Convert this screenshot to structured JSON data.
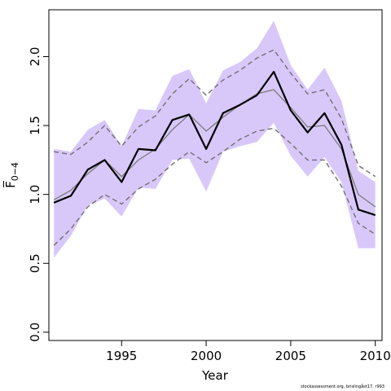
{
  "chart_data": {
    "type": "line",
    "xlabel": "Year",
    "ylabel": "F̅",
    "ylabel_subscript": "0−4",
    "xlim": [
      1990.7,
      2010.4
    ],
    "ylim": [
      -0.06,
      2.34
    ],
    "xticks": [
      1995,
      2000,
      2005,
      2010
    ],
    "yticks": [
      0.0,
      0.5,
      1.0,
      1.5,
      2.0
    ],
    "ytick_labels": [
      "0.0",
      "0.5",
      "1.0",
      "1.5",
      "2.0"
    ],
    "grid": false,
    "x": [
      1991,
      1992,
      1993,
      1994,
      1995,
      1996,
      1997,
      1998,
      1999,
      2000,
      2001,
      2002,
      2003,
      2004,
      2005,
      2006,
      2007,
      2008,
      2009,
      2010
    ],
    "band": {
      "color": "#d8c8fa",
      "upper": [
        1.33,
        1.31,
        1.47,
        1.54,
        1.35,
        1.62,
        1.61,
        1.86,
        1.91,
        1.66,
        1.9,
        1.96,
        2.06,
        2.26,
        1.94,
        1.76,
        1.92,
        1.68,
        1.17,
        1.09
      ],
      "lower": [
        0.54,
        0.7,
        0.92,
        0.97,
        0.84,
        1.05,
        1.04,
        1.25,
        1.26,
        1.02,
        1.31,
        1.35,
        1.38,
        1.52,
        1.28,
        1.13,
        1.27,
        1.09,
        0.61,
        0.61
      ]
    },
    "series": [
      {
        "role": "estimate",
        "color": "#000000",
        "values": [
          0.94,
          0.99,
          1.18,
          1.25,
          1.09,
          1.33,
          1.32,
          1.54,
          1.58,
          1.33,
          1.59,
          1.65,
          1.72,
          1.89,
          1.61,
          1.45,
          1.59,
          1.36,
          0.89,
          0.85
        ]
      },
      {
        "role": "median",
        "color": "#808080",
        "values": [
          0.96,
          1.03,
          1.15,
          1.25,
          1.13,
          1.25,
          1.33,
          1.47,
          1.58,
          1.46,
          1.56,
          1.65,
          1.73,
          1.76,
          1.63,
          1.49,
          1.5,
          1.33,
          1.0,
          0.91
        ]
      },
      {
        "role": "upper-bound",
        "color": "#707070",
        "dashed": true,
        "values": [
          1.31,
          1.29,
          1.38,
          1.5,
          1.35,
          1.49,
          1.57,
          1.73,
          1.84,
          1.72,
          1.83,
          1.9,
          1.99,
          2.05,
          1.88,
          1.73,
          1.76,
          1.55,
          1.21,
          1.13
        ]
      },
      {
        "role": "lower-bound",
        "color": "#707070",
        "dashed": true,
        "values": [
          0.63,
          0.75,
          0.91,
          1.0,
          0.93,
          1.04,
          1.11,
          1.22,
          1.31,
          1.23,
          1.31,
          1.4,
          1.46,
          1.48,
          1.37,
          1.25,
          1.25,
          1.06,
          0.79,
          0.71
        ]
      }
    ]
  },
  "credit": "stockassessment.org, brislingåst17, r993"
}
